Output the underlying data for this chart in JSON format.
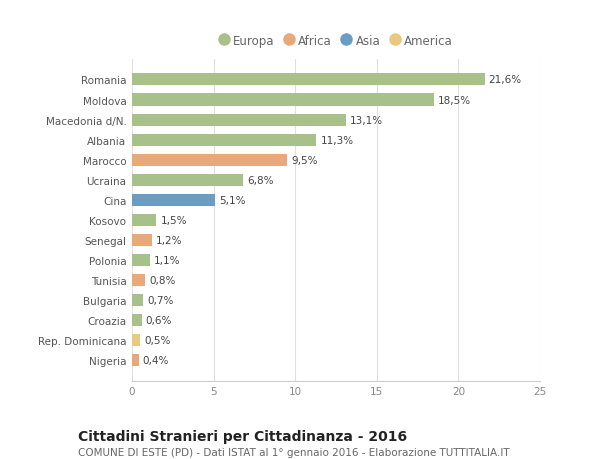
{
  "categories": [
    "Romania",
    "Moldova",
    "Macedonia d/N.",
    "Albania",
    "Marocco",
    "Ucraina",
    "Cina",
    "Kosovo",
    "Senegal",
    "Polonia",
    "Tunisia",
    "Bulgaria",
    "Croazia",
    "Rep. Dominicana",
    "Nigeria"
  ],
  "values": [
    21.6,
    18.5,
    13.1,
    11.3,
    9.5,
    6.8,
    5.1,
    1.5,
    1.2,
    1.1,
    0.8,
    0.7,
    0.6,
    0.5,
    0.4
  ],
  "labels": [
    "21,6%",
    "18,5%",
    "13,1%",
    "11,3%",
    "9,5%",
    "6,8%",
    "5,1%",
    "1,5%",
    "1,2%",
    "1,1%",
    "0,8%",
    "0,7%",
    "0,6%",
    "0,5%",
    "0,4%"
  ],
  "continents": [
    "Europa",
    "Europa",
    "Europa",
    "Europa",
    "Africa",
    "Europa",
    "Asia",
    "Europa",
    "Africa",
    "Europa",
    "Africa",
    "Europa",
    "Europa",
    "America",
    "Africa"
  ],
  "colors": {
    "Europa": "#a8c08a",
    "Africa": "#e8a87a",
    "Asia": "#6b9dc2",
    "America": "#e8c97e"
  },
  "legend_order": [
    "Europa",
    "Africa",
    "Asia",
    "America"
  ],
  "xlim": [
    0,
    25
  ],
  "xticks": [
    0,
    5,
    10,
    15,
    20,
    25
  ],
  "title": "Cittadini Stranieri per Cittadinanza - 2016",
  "subtitle": "COMUNE DI ESTE (PD) - Dati ISTAT al 1° gennaio 2016 - Elaborazione TUTTITALIA.IT",
  "bg_color": "#ffffff",
  "bar_height": 0.6,
  "label_fontsize": 7.5,
  "title_fontsize": 10,
  "subtitle_fontsize": 7.5,
  "tick_fontsize": 7.5,
  "legend_fontsize": 8.5
}
